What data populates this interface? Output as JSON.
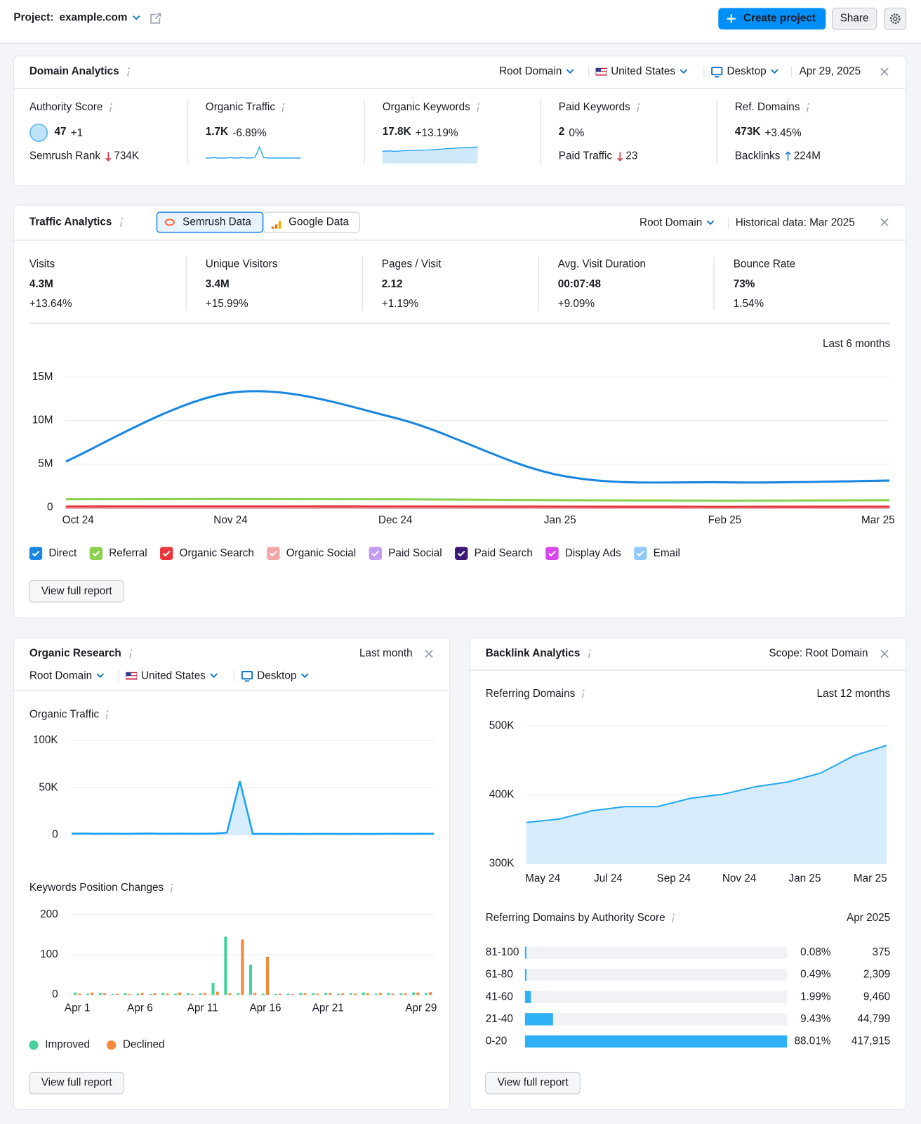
{
  "header": {
    "project_label": "Project:",
    "project_name": "example.com",
    "create_button": "Create project",
    "share_button": "Share"
  },
  "domain_analytics": {
    "title": "Domain Analytics",
    "filters": [
      "Root Domain",
      "United States",
      "Desktop"
    ],
    "date": "Apr 29, 2025",
    "metrics": [
      {
        "label": "Authority Score",
        "value": "47",
        "change": "+1",
        "change_color": "#009f81",
        "sub_label": "Semrush Rank",
        "sub_value": "734K",
        "sub_trend": "down"
      },
      {
        "label": "Organic Traffic",
        "value": "1.7K",
        "change": "-6.89%",
        "change_color": "#d1303b",
        "sparkline": {
          "type": "line",
          "values": [
            10,
            10,
            11,
            10,
            10,
            10,
            11,
            10,
            10,
            11,
            10,
            10,
            12,
            30,
            11,
            10,
            10,
            10,
            10,
            10,
            10,
            10,
            10,
            10
          ]
        }
      },
      {
        "label": "Organic Keywords",
        "value": "17.8K",
        "change": "+13.19%",
        "change_color": "#009f81",
        "sparkline": {
          "type": "area",
          "values": [
            14,
            14.5,
            14,
            14.6,
            15,
            15.2,
            15.4,
            15.6,
            16,
            16.5,
            17,
            17.4,
            18,
            18.3,
            18.6,
            19
          ]
        }
      },
      {
        "label": "Paid Keywords",
        "value": "2",
        "change": "0%",
        "change_color": "#5c6270",
        "sub_label": "Paid Traffic",
        "sub_value": "23",
        "sub_trend": "down"
      },
      {
        "label": "Ref. Domains",
        "value": "473K",
        "change": "+3.45%",
        "change_color": "#009f81",
        "sub_label": "Backlinks",
        "sub_value": "224M",
        "sub_trend": "up"
      }
    ]
  },
  "traffic_analytics": {
    "title": "Traffic Analytics",
    "tabs": [
      "Semrush Data",
      "Google Data"
    ],
    "filter": "Root Domain",
    "historical": "Historical data: Mar 2025",
    "metrics": [
      {
        "label": "Visits",
        "value": "4.3M",
        "change": "+13.64%",
        "change_color": "#009f81"
      },
      {
        "label": "Unique Visitors",
        "value": "3.4M",
        "change": "+15.99%",
        "change_color": "#009f81"
      },
      {
        "label": "Pages / Visit",
        "value": "2.12",
        "change": "+1.19%",
        "change_color": "#009f81"
      },
      {
        "label": "Avg. Visit Duration",
        "value": "00:07:48",
        "change": "+9.09%",
        "change_color": "#009f81"
      },
      {
        "label": "Bounce Rate",
        "value": "73%",
        "change": "1.54%",
        "change_color": "#d1303b"
      }
    ],
    "period": "Last 6 months",
    "chart": {
      "type": "line",
      "x": [
        "Oct 24",
        "Nov 24",
        "Dec 24",
        "Jan 25",
        "Feb 25",
        "Mar 25"
      ],
      "ylim": [
        0,
        15000000
      ],
      "yticks": [
        0,
        {
          "value": 5000000,
          "label": "5M"
        },
        {
          "value": 10000000,
          "label": "10M"
        },
        {
          "value": 15000000,
          "label": "15M"
        }
      ],
      "grid": true,
      "series": [
        {
          "name": "Direct",
          "color": "#1a86e0",
          "values": [
            5300000,
            13200000,
            10300000,
            3700000,
            2900000,
            3100000
          ]
        },
        {
          "name": "Referral",
          "color": "#8bd14f",
          "values": [
            950000,
            980000,
            950000,
            850000,
            780000,
            850000
          ]
        },
        {
          "name": "Organic Search",
          "color": "#e8383d",
          "values": [
            120000,
            130000,
            120000,
            110000,
            100000,
            110000
          ]
        },
        {
          "name": "Organic Social",
          "color": "#f4a7a7",
          "values": [
            20000,
            20000,
            20000,
            20000,
            20000,
            20000
          ]
        },
        {
          "name": "Paid Social",
          "color": "#c49cf0",
          "values": [
            60000,
            60000,
            60000,
            60000,
            60000,
            60000
          ]
        },
        {
          "name": "Paid Search",
          "color": "#3c1a78",
          "values": [
            10000,
            10000,
            10000,
            10000,
            10000,
            10000
          ]
        },
        {
          "name": "Display Ads",
          "color": "#d946ef",
          "values": [
            5000,
            5000,
            5000,
            5000,
            5000,
            5000
          ]
        },
        {
          "name": "Email",
          "color": "#90caf9",
          "values": [
            80000,
            80000,
            80000,
            80000,
            80000,
            80000
          ]
        }
      ]
    },
    "button": "View full report"
  },
  "organic_research": {
    "title": "Organic Research",
    "period": "Last month",
    "filters": [
      "Root Domain",
      "United States",
      "Desktop"
    ],
    "traffic_chart": {
      "type": "area",
      "title": "Organic Traffic",
      "color": "#1aa1f0",
      "ylim": [
        0,
        100000
      ],
      "yticks": [
        0,
        {
          "value": 50000,
          "label": "50K"
        },
        {
          "value": 100000,
          "label": "100K"
        }
      ],
      "grid": true,
      "values": [
        1500,
        1600,
        1400,
        1500,
        1300,
        1500,
        1700,
        1400,
        1500,
        1500,
        1400,
        1600,
        2500,
        57000,
        1200,
        1300,
        1200,
        1300,
        1200,
        1300,
        1300,
        1200,
        1300,
        1200,
        1300,
        1400,
        1300,
        1400,
        1300
      ]
    },
    "positions_chart": {
      "type": "bar",
      "title": "Keywords Position Changes",
      "categories": [
        "Apr 1",
        null,
        null,
        null,
        null,
        "Apr 6",
        null,
        null,
        null,
        null,
        "Apr 11",
        null,
        null,
        null,
        null,
        "Apr 16",
        null,
        null,
        null,
        null,
        "Apr 21",
        null,
        null,
        null,
        null,
        null,
        null,
        null,
        "Apr 29"
      ],
      "ylim": [
        0,
        200
      ],
      "yticks": [
        0,
        100,
        200
      ],
      "grid": true,
      "series": [
        {
          "name": "Improved",
          "color": "#45d19a",
          "values": [
            6,
            3,
            5,
            2,
            4,
            3,
            2,
            5,
            3,
            4,
            4,
            30,
            145,
            4,
            75,
            3,
            2,
            3,
            5,
            4,
            5,
            3,
            4,
            6,
            3,
            5,
            4,
            6,
            5
          ]
        },
        {
          "name": "Declined",
          "color": "#f6883a",
          "values": [
            3,
            6,
            4,
            3,
            2,
            5,
            4,
            3,
            6,
            2,
            5,
            8,
            4,
            138,
            5,
            95,
            3,
            2,
            4,
            3,
            5,
            4,
            3,
            4,
            5,
            3,
            4,
            6,
            7
          ]
        }
      ]
    },
    "button": "View full report"
  },
  "backlink_analytics": {
    "title": "Backlink Analytics",
    "scope": "Scope: Root Domain",
    "ref_chart": {
      "type": "area",
      "title": "Referring Domains",
      "period": "Last 12 months",
      "color": "#22a7f0",
      "categories": [
        "May 24",
        null,
        "Jul 24",
        null,
        "Sep 24",
        null,
        "Nov 24",
        null,
        "Jan 25",
        null,
        "Mar 25",
        null
      ],
      "ylim": [
        300000,
        500000
      ],
      "yticks": [
        {
          "value": 300000,
          "label": "300K"
        },
        {
          "value": 400000,
          "label": "400K"
        },
        {
          "value": 500000,
          "label": "500K"
        }
      ],
      "grid": true,
      "values": [
        360000,
        365000,
        377000,
        383000,
        383000,
        395000,
        401000,
        412000,
        419000,
        432000,
        457000,
        472000
      ]
    },
    "authority_chart": {
      "type": "bar",
      "title": "Referring Domains by Authority Score",
      "period": "Apr 2025",
      "color": "#2db0f5",
      "categories": [
        "81-100",
        "61-80",
        "41-60",
        "21-40",
        "0-20"
      ],
      "values": [
        0.08,
        0.49,
        1.99,
        9.43,
        88.01
      ],
      "value_labels": [
        "0.08%",
        "0.49%",
        "1.99%",
        "9.43%",
        "88.01%"
      ],
      "counts": [
        "375",
        "2,309",
        "9,460",
        "44,799",
        "417,915"
      ]
    },
    "button": "View full report"
  }
}
